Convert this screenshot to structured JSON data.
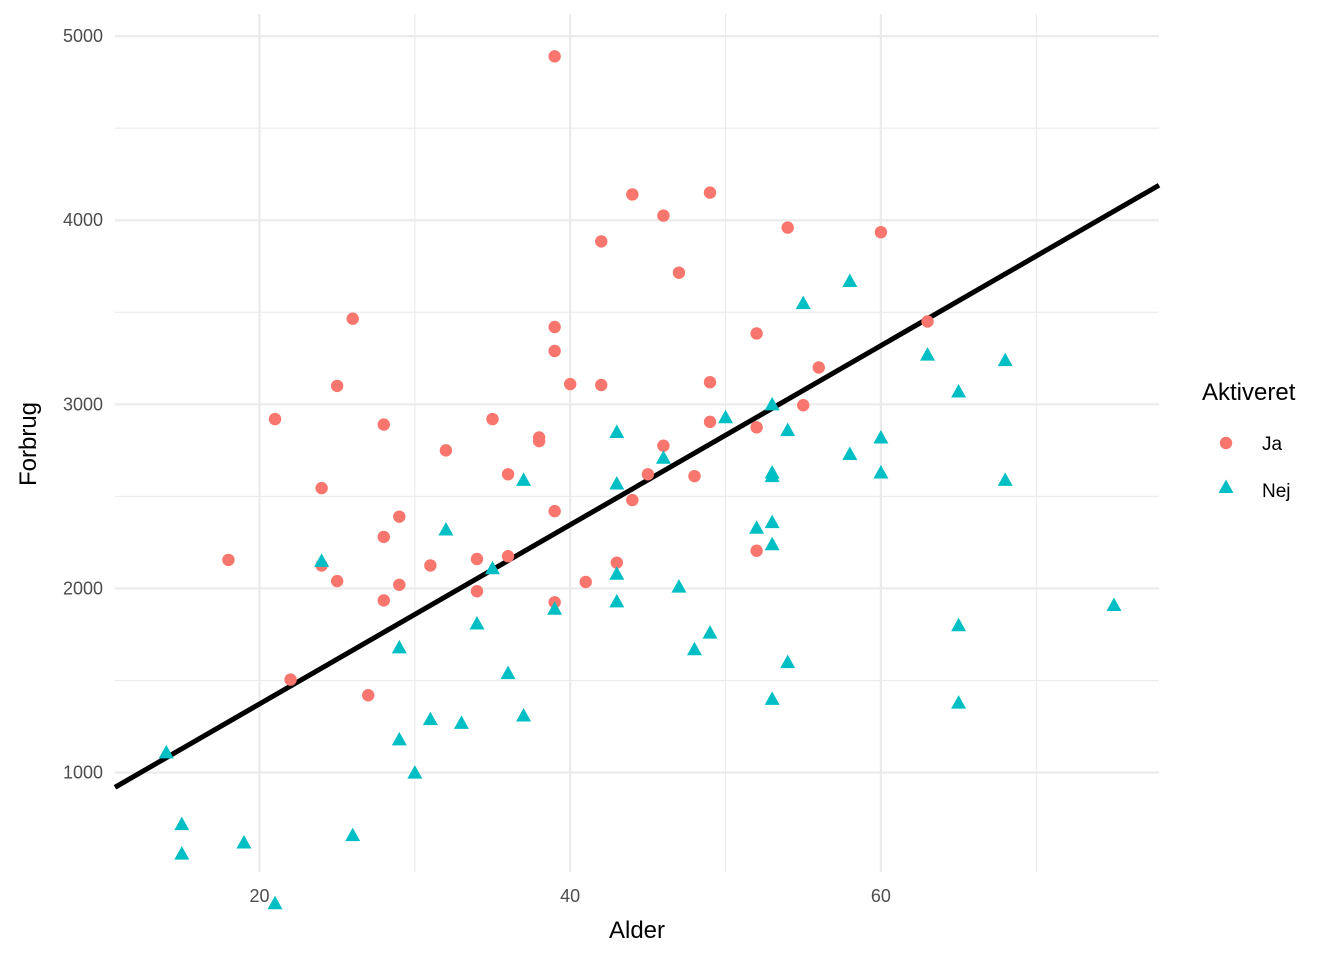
{
  "chart_data": {
    "type": "scatter",
    "xlabel": "Alder",
    "ylabel": "Forbrug",
    "xlim": [
      10.7,
      77.9
    ],
    "ylim": [
      460,
      5120
    ],
    "x_ticks": [
      20,
      40,
      60
    ],
    "y_ticks": [
      1000,
      2000,
      3000,
      4000,
      5000
    ],
    "x_tick_labels": [
      "20",
      "40",
      "60"
    ],
    "y_tick_labels": [
      "1000",
      "2000",
      "3000",
      "4000",
      "5000"
    ],
    "x_minor_gridlines": [
      30,
      50,
      70
    ],
    "y_minor_gridlines": [
      1500,
      2500,
      3500,
      4500
    ],
    "grid": true,
    "legend": {
      "title": "Aktiveret",
      "position": "right",
      "entries": [
        {
          "label": "Ja",
          "shape": "circle",
          "color": "#F8766D"
        },
        {
          "label": "Nej",
          "shape": "triangle",
          "color": "#00BFC4"
        }
      ]
    },
    "trend_line": {
      "x": [
        10.7,
        77.9
      ],
      "y": [
        920,
        4190
      ],
      "color": "#000000"
    },
    "series": [
      {
        "name": "Ja",
        "color": "#F8766D",
        "shape": "circle",
        "points": [
          [
            39,
            4890
          ],
          [
            44,
            4140
          ],
          [
            49,
            4150
          ],
          [
            46,
            4025
          ],
          [
            54,
            3960
          ],
          [
            60,
            3935
          ],
          [
            42,
            3885
          ],
          [
            47,
            3715
          ],
          [
            26,
            3465
          ],
          [
            39,
            3420
          ],
          [
            63,
            3450
          ],
          [
            52,
            3385
          ],
          [
            39,
            3290
          ],
          [
            56,
            3200
          ],
          [
            25,
            3100
          ],
          [
            40,
            3110
          ],
          [
            42,
            3105
          ],
          [
            49,
            3120
          ],
          [
            55,
            2995
          ],
          [
            21,
            2920
          ],
          [
            35,
            2920
          ],
          [
            28,
            2890
          ],
          [
            49,
            2905
          ],
          [
            52,
            2875
          ],
          [
            38,
            2820
          ],
          [
            38,
            2800
          ],
          [
            46,
            2775
          ],
          [
            32,
            2750
          ],
          [
            36,
            2620
          ],
          [
            45,
            2620
          ],
          [
            48,
            2610
          ],
          [
            24,
            2545
          ],
          [
            44,
            2480
          ],
          [
            29,
            2390
          ],
          [
            39,
            2420
          ],
          [
            28,
            2280
          ],
          [
            52,
            2205
          ],
          [
            18,
            2155
          ],
          [
            34,
            2160
          ],
          [
            36,
            2175
          ],
          [
            31,
            2125
          ],
          [
            24,
            2125
          ],
          [
            25,
            2040
          ],
          [
            29,
            2020
          ],
          [
            41,
            2035
          ],
          [
            34,
            1985
          ],
          [
            28,
            1935
          ],
          [
            39,
            1925
          ],
          [
            22,
            1505
          ],
          [
            27,
            1420
          ],
          [
            43,
            2140
          ]
        ]
      },
      {
        "name": "Nej",
        "color": "#00BFC4",
        "shape": "triangle",
        "points": [
          [
            58,
            3670
          ],
          [
            55,
            3550
          ],
          [
            63,
            3270
          ],
          [
            68,
            3240
          ],
          [
            65,
            3070
          ],
          [
            53,
            3000
          ],
          [
            50,
            2930
          ],
          [
            43,
            2850
          ],
          [
            54,
            2860
          ],
          [
            60,
            2820
          ],
          [
            58,
            2730
          ],
          [
            46,
            2710
          ],
          [
            53,
            2630
          ],
          [
            53,
            2610
          ],
          [
            60,
            2630
          ],
          [
            37,
            2590
          ],
          [
            43,
            2570
          ],
          [
            68,
            2590
          ],
          [
            53,
            2360
          ],
          [
            52,
            2330
          ],
          [
            32,
            2320
          ],
          [
            53,
            2240
          ],
          [
            24,
            2150
          ],
          [
            35,
            2110
          ],
          [
            43,
            2080
          ],
          [
            47,
            2010
          ],
          [
            43,
            1930
          ],
          [
            39,
            1890
          ],
          [
            75,
            1910
          ],
          [
            34,
            1810
          ],
          [
            65,
            1800
          ],
          [
            49,
            1760
          ],
          [
            29,
            1680
          ],
          [
            48,
            1670
          ],
          [
            54,
            1600
          ],
          [
            36,
            1540
          ],
          [
            53,
            1400
          ],
          [
            65,
            1380
          ],
          [
            37,
            1310
          ],
          [
            31,
            1290
          ],
          [
            33,
            1270
          ],
          [
            29,
            1180
          ],
          [
            14,
            1110
          ],
          [
            30,
            1000
          ],
          [
            15,
            720
          ],
          [
            26,
            660
          ],
          [
            19,
            620
          ],
          [
            15,
            560
          ],
          [
            21,
            290
          ]
        ]
      }
    ]
  }
}
